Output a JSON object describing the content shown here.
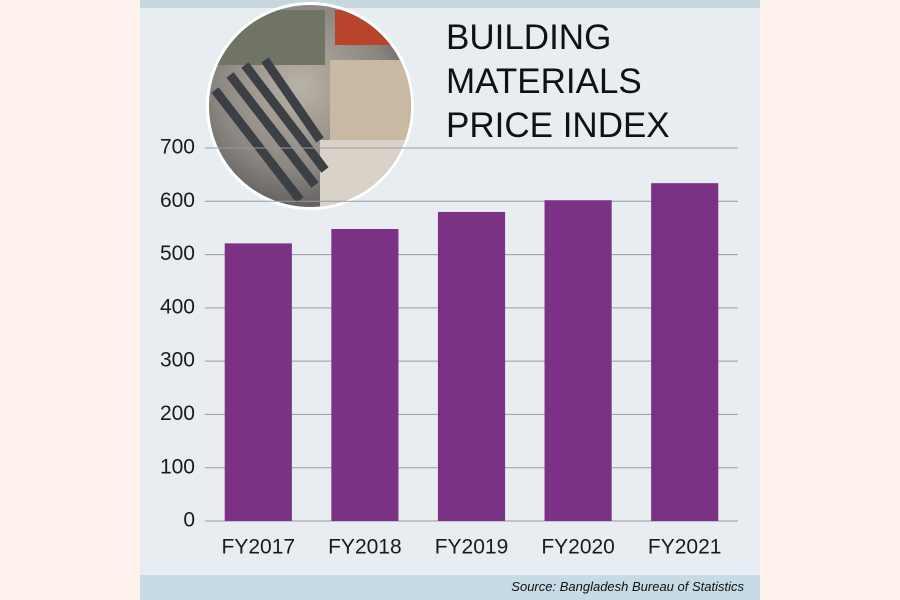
{
  "chart_data": {
    "type": "bar",
    "title": "BUILDING MATERIALS PRICE INDEX",
    "categories": [
      "FY2017",
      "FY2018",
      "FY2019",
      "FY2020",
      "FY2021"
    ],
    "values": [
      521,
      548,
      580,
      602,
      634
    ],
    "color": "#7b3285",
    "ylim": [
      0,
      700
    ],
    "yticks": [
      0,
      100,
      200,
      300,
      400,
      500,
      600,
      700
    ],
    "grid": true,
    "source": "Source: Bangladesh Bureau of Statistics"
  }
}
